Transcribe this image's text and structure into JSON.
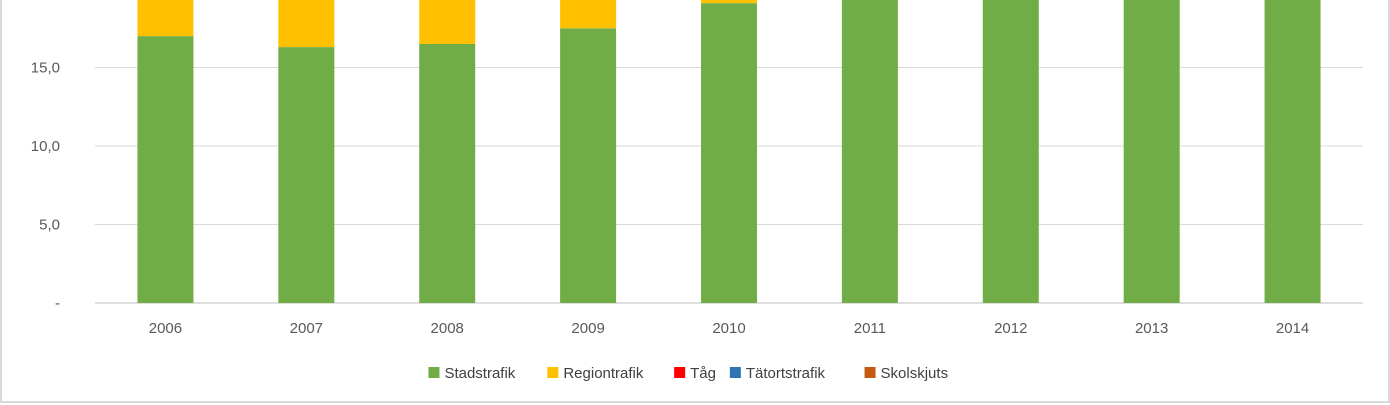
{
  "chart_data": {
    "type": "bar",
    "stacked": true,
    "categories": [
      "2006",
      "2007",
      "2008",
      "2009",
      "2010",
      "2011",
      "2012",
      "2013",
      "2014"
    ],
    "series": [
      {
        "name": "Stadstrafik",
        "color": "#70ad47",
        "values": [
          17.0,
          16.3,
          16.5,
          17.5,
          19.1,
          20.0,
          20.0,
          20.0,
          20.0
        ]
      },
      {
        "name": "Regiontrafik",
        "color": "#ffc000",
        "values": [
          3.0,
          3.7,
          3.5,
          2.5,
          0.9,
          0.0,
          0.0,
          0.0,
          0.0
        ]
      },
      {
        "name": "Tåg",
        "color": "#ff0000",
        "values": [
          0,
          0,
          0,
          0,
          0,
          0,
          0,
          0,
          0
        ]
      },
      {
        "name": "Tätortstrafik",
        "color": "#2e75b6",
        "values": [
          0,
          0,
          0,
          0,
          0,
          0,
          0,
          0,
          0
        ]
      },
      {
        "name": "Skolskjuts",
        "color": "#c55a11",
        "values": [
          0,
          0,
          0,
          0,
          0,
          0,
          0,
          0,
          0
        ]
      }
    ],
    "yticks": [
      {
        "value": 0,
        "label": "-"
      },
      {
        "value": 5,
        "label": "5,0"
      },
      {
        "value": 10,
        "label": "10,0"
      },
      {
        "value": 15,
        "label": "15,0"
      }
    ],
    "ylim": [
      0,
      19.3
    ],
    "grid": true,
    "legend_position": "bottom",
    "title": "",
    "xlabel": "",
    "ylabel": ""
  }
}
